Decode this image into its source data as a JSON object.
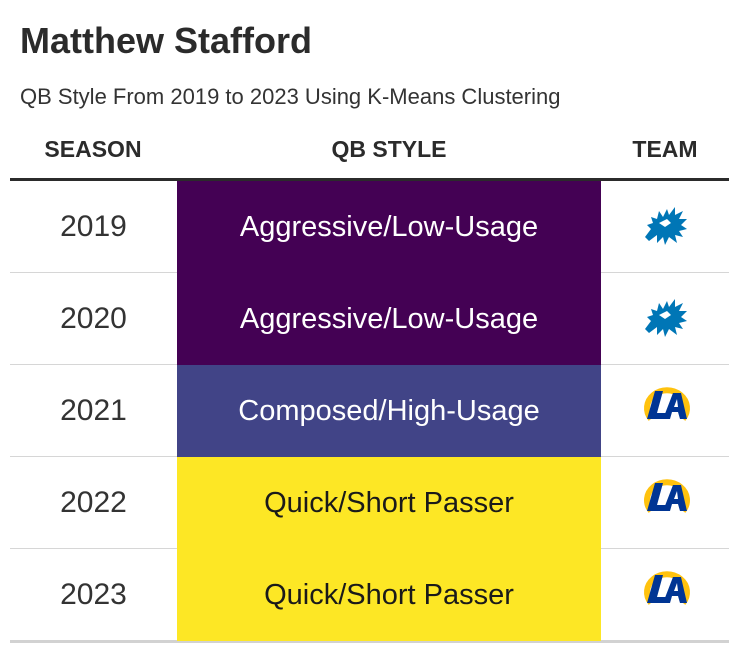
{
  "chart_data": {
    "type": "table",
    "title": "Matthew Stafford",
    "subtitle": "QB Style From 2019 to 2023 Using K-Means Clustering",
    "columns": [
      "SEASON",
      "QB STYLE",
      "TEAM"
    ],
    "rows": [
      {
        "season": "2019",
        "style": "Aggressive/Low-Usage",
        "team": "Detroit Lions",
        "team_icon": "lions-logo-icon",
        "fill": "#440154",
        "text_color": "#ffffff"
      },
      {
        "season": "2020",
        "style": "Aggressive/Low-Usage",
        "team": "Detroit Lions",
        "team_icon": "lions-logo-icon",
        "fill": "#440154",
        "text_color": "#ffffff"
      },
      {
        "season": "2021",
        "style": "Composed/High-Usage",
        "team": "Los Angeles Rams",
        "team_icon": "rams-logo-icon",
        "fill": "#414487",
        "text_color": "#ffffff"
      },
      {
        "season": "2022",
        "style": "Quick/Short Passer",
        "team": "Los Angeles Rams",
        "team_icon": "rams-logo-icon",
        "fill": "#fde725",
        "text_color": "#1a1a1a"
      },
      {
        "season": "2023",
        "style": "Quick/Short Passer",
        "team": "Los Angeles Rams",
        "team_icon": "rams-logo-icon",
        "fill": "#fde725",
        "text_color": "#1a1a1a"
      }
    ],
    "colors": {
      "lions_blue": "#0076b6",
      "rams_blue": "#003594",
      "rams_gold": "#ffc20e"
    }
  }
}
